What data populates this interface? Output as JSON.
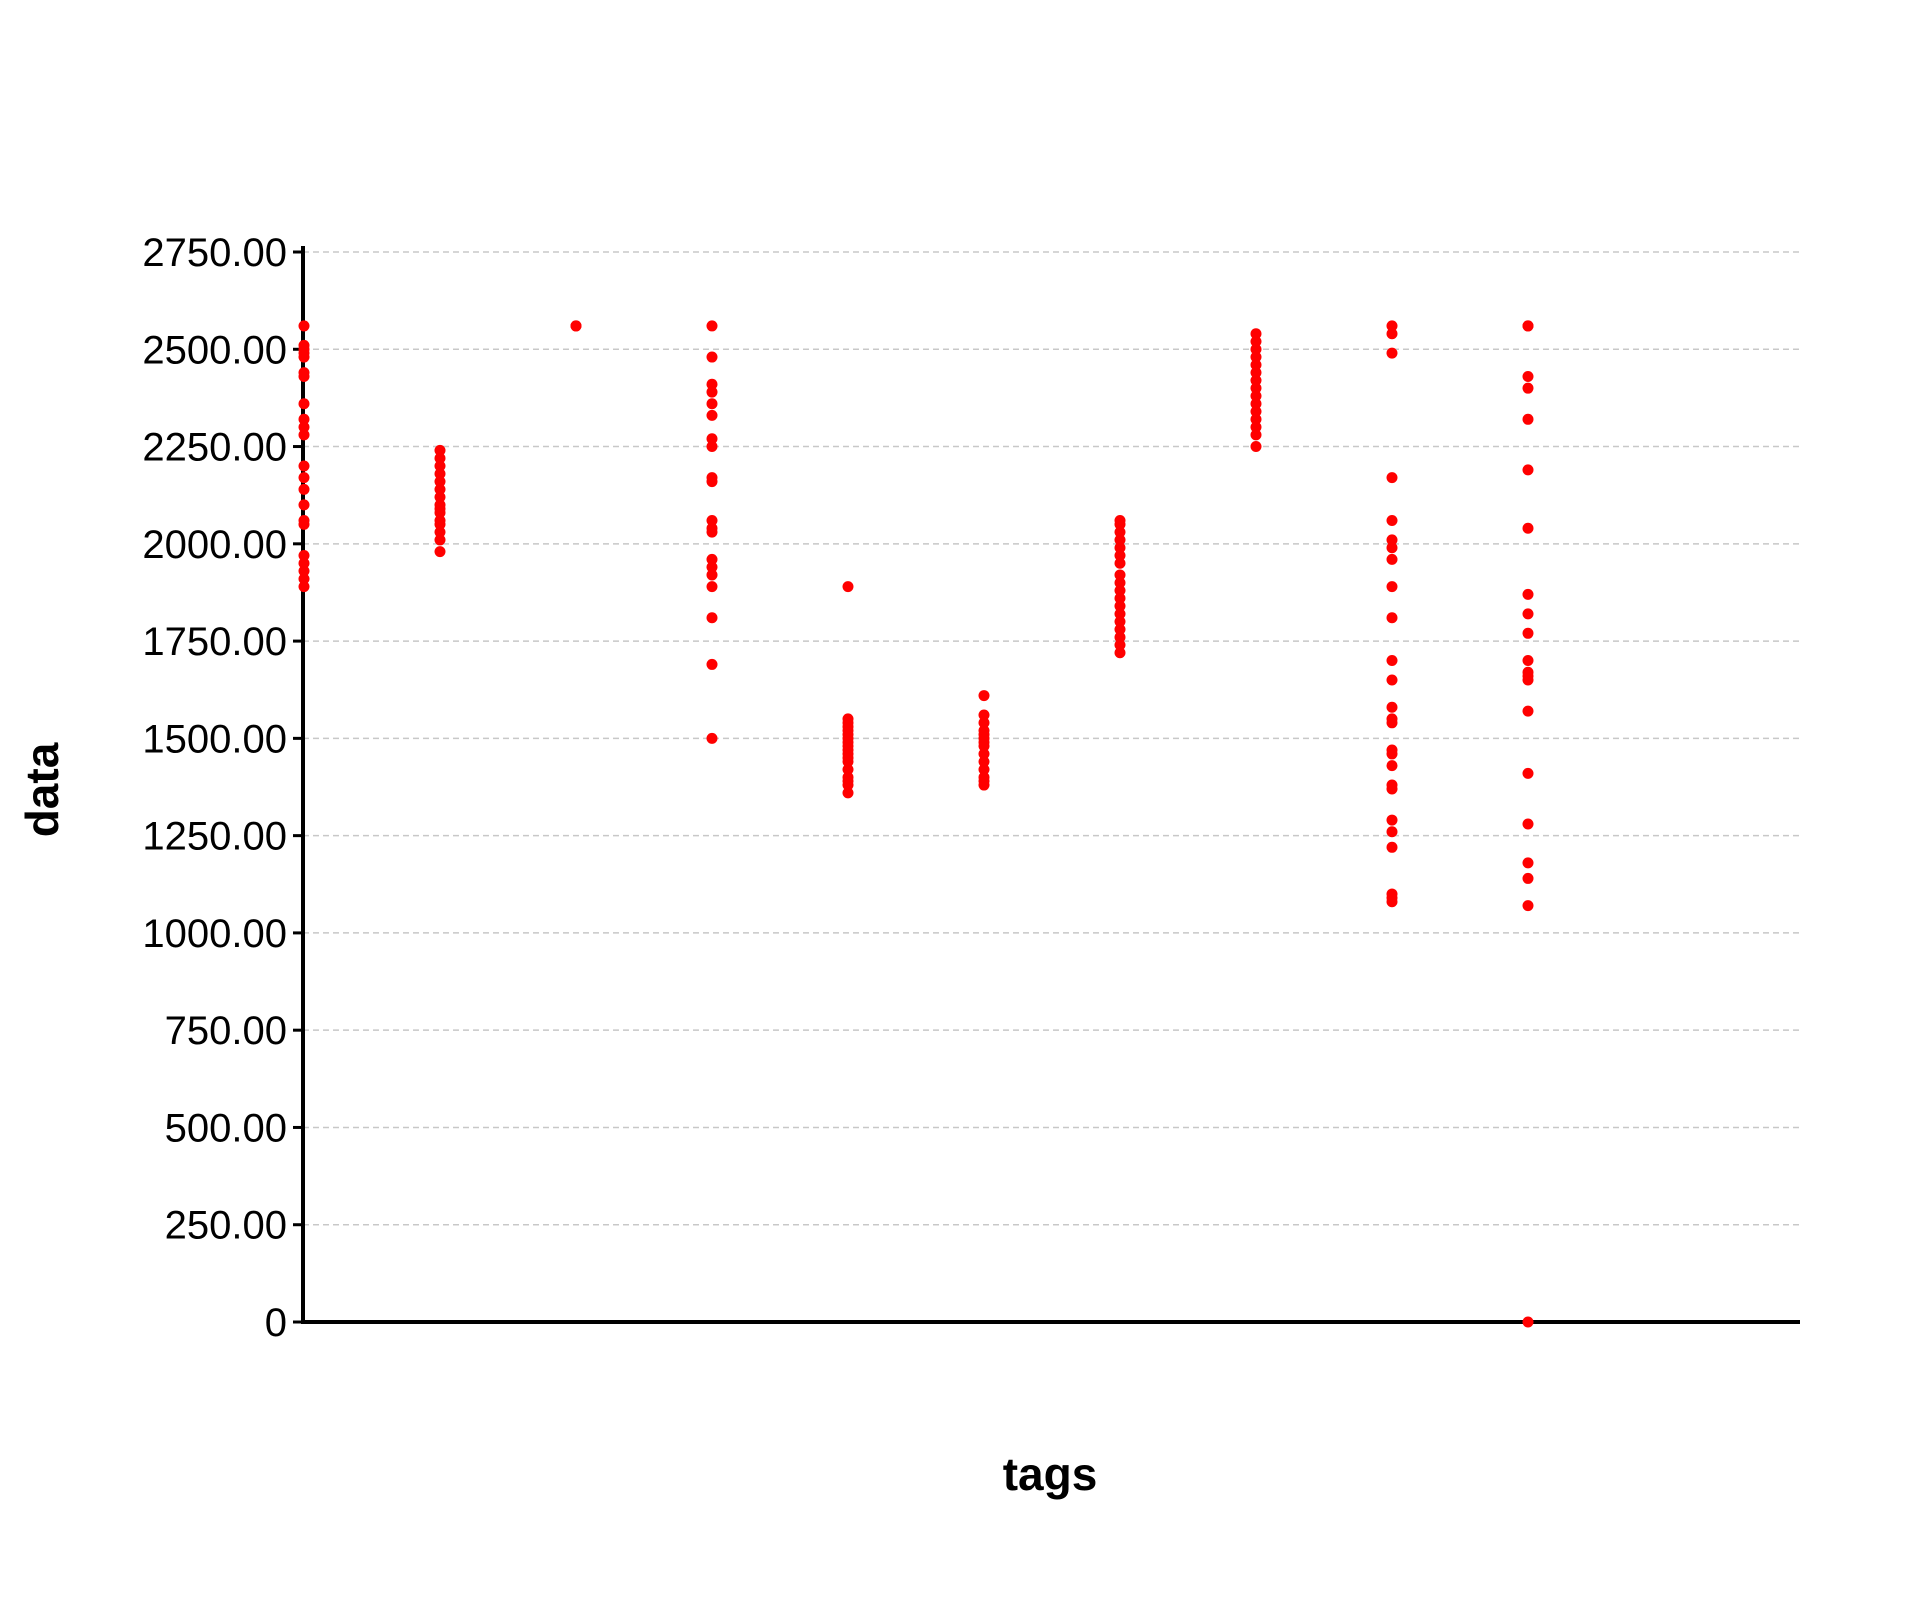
{
  "chart_data": {
    "type": "scatter",
    "title": "",
    "xlabel": "tags",
    "ylabel": "data",
    "ylim": [
      0,
      2750
    ],
    "yticks": [
      "0",
      "250.00",
      "500.00",
      "750.00",
      "1000.00",
      "1250.00",
      "1500.00",
      "1750.00",
      "2000.00",
      "2250.00",
      "2500.00",
      "2750.00"
    ],
    "ytick_values": [
      0,
      250,
      500,
      750,
      1000,
      1250,
      1500,
      1750,
      2000,
      2250,
      2500,
      2750
    ],
    "grid": true,
    "x_tick_labels_visible": false,
    "category_count": 11,
    "point_color": "#ff0000",
    "series": [
      {
        "category_index": 0,
        "values": [
          2560,
          2510,
          2500,
          2490,
          2480,
          2440,
          2430,
          2360,
          2320,
          2300,
          2280,
          2200,
          2170,
          2140,
          2100,
          2060,
          2050,
          1970,
          1950,
          1930,
          1910,
          1890
        ]
      },
      {
        "category_index": 1,
        "values": [
          2240,
          2220,
          2200,
          2180,
          2160,
          2140,
          2120,
          2100,
          2090,
          2080,
          2060,
          2050,
          2030,
          2010,
          1980
        ]
      },
      {
        "category_index": 2,
        "values": [
          2560,
          2560
        ]
      },
      {
        "category_index": 3,
        "values": [
          2560,
          2480,
          2410,
          2390,
          2360,
          2330,
          2270,
          2250,
          2170,
          2160,
          2060,
          2040,
          2030,
          1960,
          1940,
          1920,
          1890,
          1810,
          1690,
          1500
        ]
      },
      {
        "category_index": 4,
        "values": [
          1890,
          1550,
          1540,
          1530,
          1520,
          1510,
          1500,
          1490,
          1480,
          1470,
          1460,
          1450,
          1440,
          1420,
          1400,
          1390,
          1380,
          1360
        ]
      },
      {
        "category_index": 5,
        "values": [
          1610,
          1560,
          1540,
          1520,
          1510,
          1500,
          1490,
          1480,
          1460,
          1440,
          1420,
          1400,
          1390,
          1380
        ]
      },
      {
        "category_index": 6,
        "values": [
          2060,
          2050,
          2030,
          2010,
          1990,
          1970,
          1950,
          1920,
          1900,
          1880,
          1860,
          1840,
          1820,
          1800,
          1780,
          1760,
          1740,
          1720
        ]
      },
      {
        "category_index": 7,
        "values": [
          2540,
          2520,
          2500,
          2480,
          2460,
          2440,
          2420,
          2400,
          2380,
          2360,
          2340,
          2320,
          2300,
          2280,
          2250
        ]
      },
      {
        "category_index": 8,
        "values": [
          2560,
          2540,
          2490,
          2170,
          2060,
          2010,
          1990,
          1960,
          1890,
          1810,
          1700,
          1650,
          1580,
          1550,
          1540,
          1470,
          1460,
          1430,
          1380,
          1370,
          1290,
          1260,
          1220,
          1100,
          1090,
          1080
        ]
      },
      {
        "category_index": 9,
        "values": [
          2560,
          2560,
          2430,
          2400,
          2320,
          2190,
          2040,
          1870,
          1820,
          1770,
          1700,
          1670,
          1660,
          1650,
          1570,
          1410,
          1280,
          1180,
          1140,
          1070,
          0
        ]
      }
    ]
  }
}
